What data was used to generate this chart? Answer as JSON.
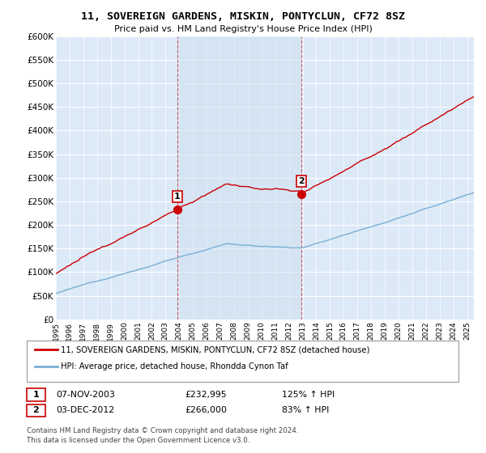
{
  "title": "11, SOVEREIGN GARDENS, MISKIN, PONTYCLUN, CF72 8SZ",
  "subtitle": "Price paid vs. HM Land Registry's House Price Index (HPI)",
  "legend_line1": "11, SOVEREIGN GARDENS, MISKIN, PONTYCLUN, CF72 8SZ (detached house)",
  "legend_line2": "HPI: Average price, detached house, Rhondda Cynon Taf",
  "footnote": "Contains HM Land Registry data © Crown copyright and database right 2024.\nThis data is licensed under the Open Government Licence v3.0.",
  "table_rows": [
    {
      "num": "1",
      "date": "07-NOV-2003",
      "price": "£232,995",
      "hpi": "125% ↑ HPI"
    },
    {
      "num": "2",
      "date": "03-DEC-2012",
      "price": "£266,000",
      "hpi": "83% ↑ HPI"
    }
  ],
  "ylim": [
    0,
    600000
  ],
  "yticks": [
    0,
    50000,
    100000,
    150000,
    200000,
    250000,
    300000,
    350000,
    400000,
    450000,
    500000,
    550000,
    600000
  ],
  "ytick_labels": [
    "£0",
    "£50K",
    "£100K",
    "£150K",
    "£200K",
    "£250K",
    "£300K",
    "£350K",
    "£400K",
    "£450K",
    "£500K",
    "£550K",
    "£600K"
  ],
  "plot_bg": "#dce9f7",
  "shade_bg": "#cfe0f0",
  "red_color": "#cc0000",
  "blue_color": "#7aafd4",
  "vline_color": "#cc0000",
  "marker1_year": 2003.854,
  "marker1_price": 232995,
  "marker2_year": 2012.921,
  "marker2_price": 266000,
  "xmin": 1995,
  "xmax": 2025.5
}
